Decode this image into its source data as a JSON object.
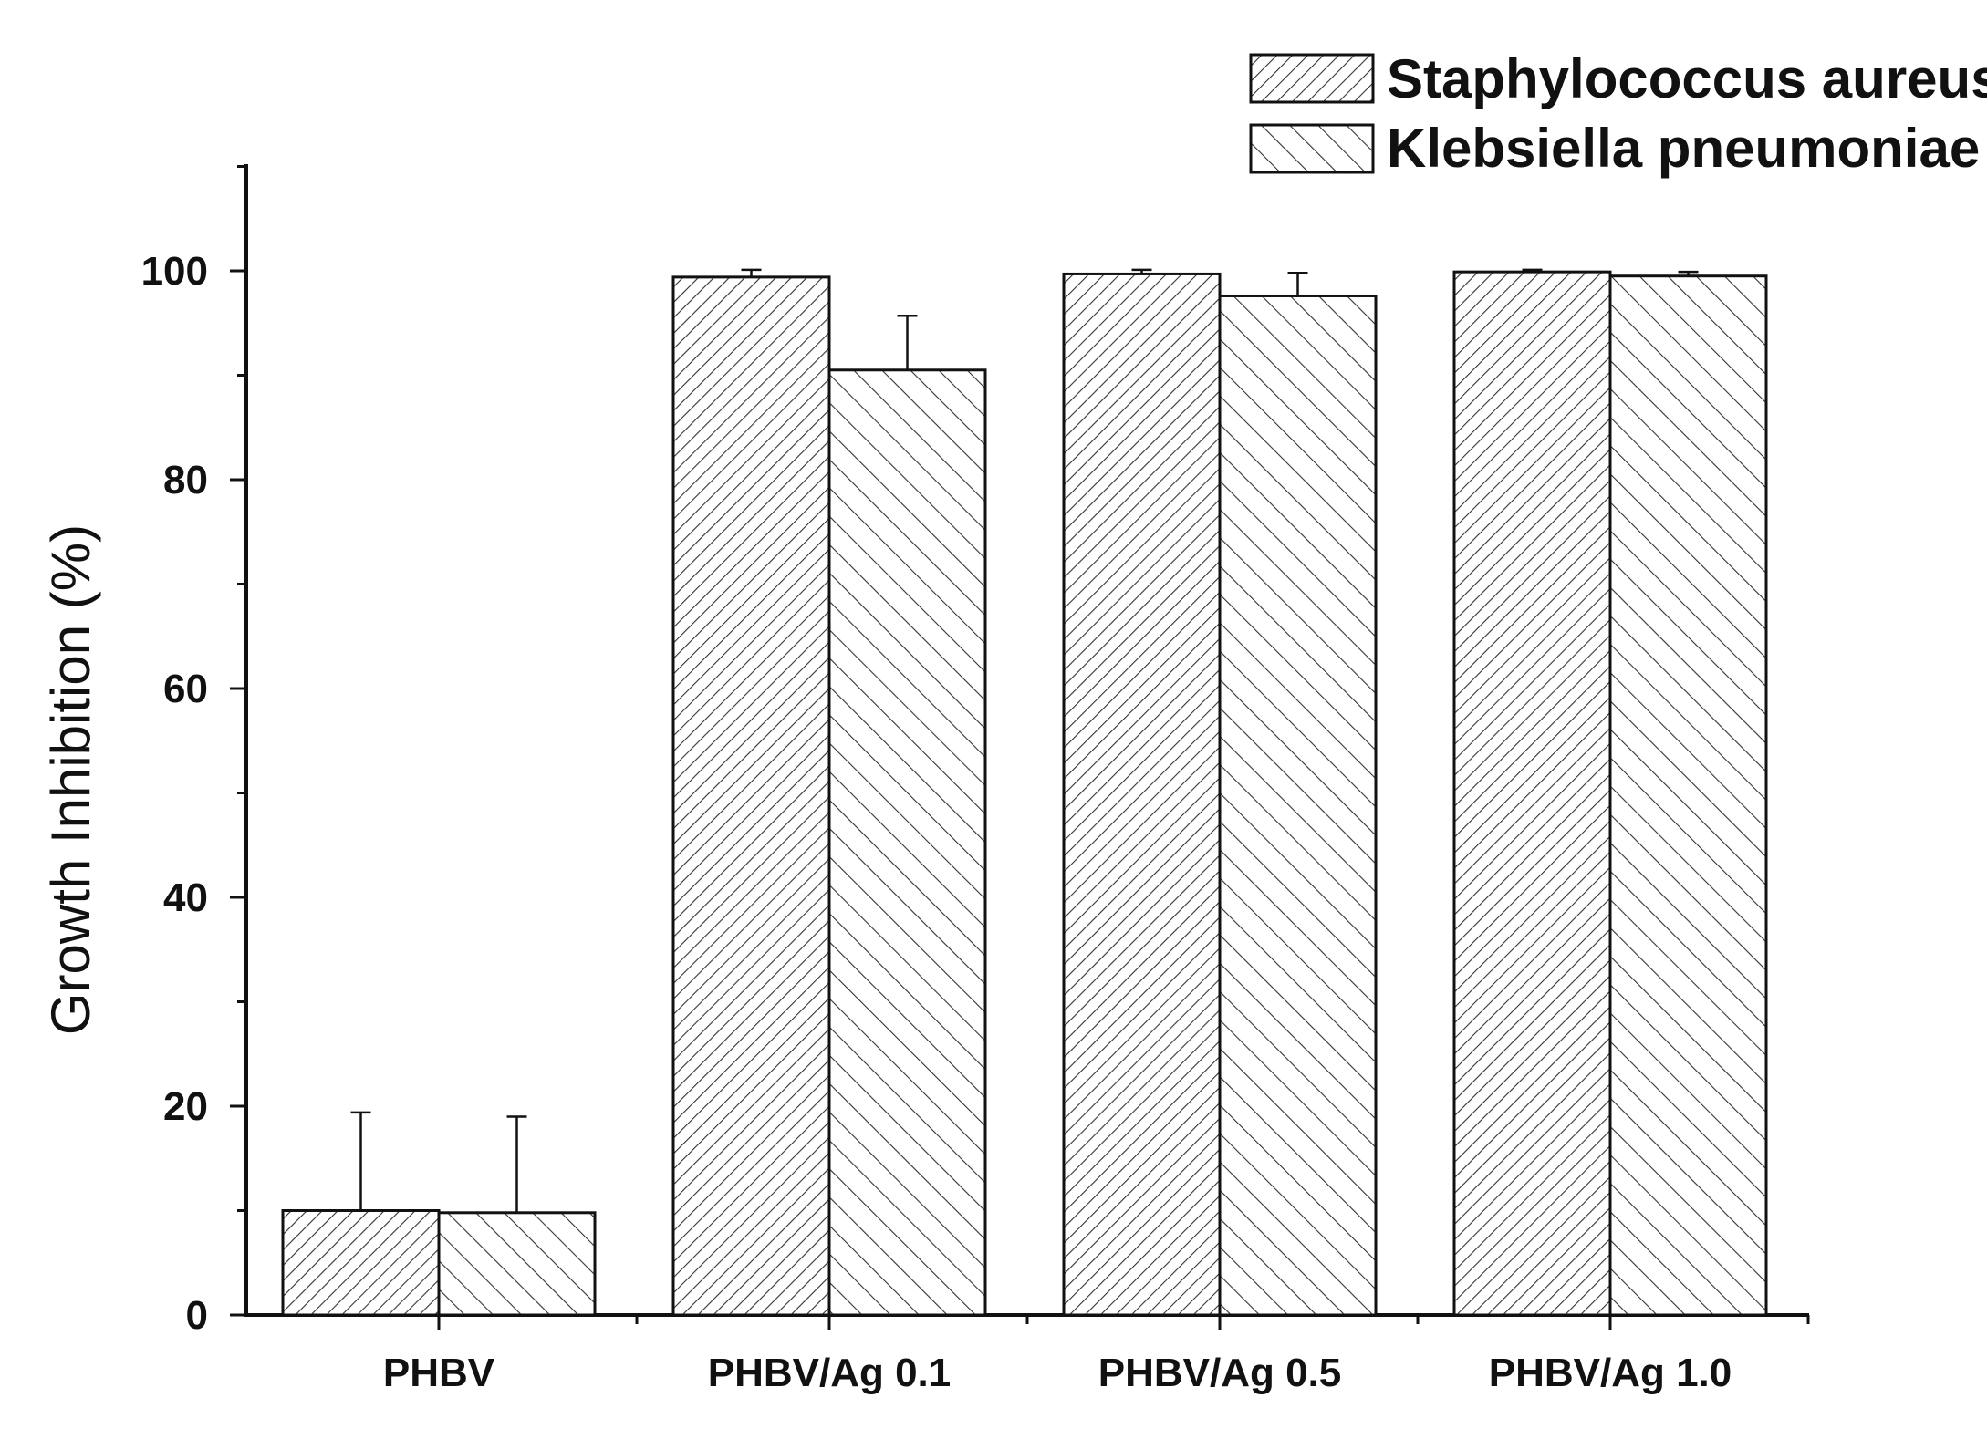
{
  "chart_data": {
    "type": "bar",
    "ylabel": "Growth Inhibition (%)",
    "xlabel": "",
    "ylim": [
      0,
      110
    ],
    "yticks": [
      0,
      20,
      40,
      60,
      80,
      100
    ],
    "categories": [
      "PHBV",
      "PHBV/Ag 0.1",
      "PHBV/Ag 0.5",
      "PHBV/Ag 1.0"
    ],
    "series": [
      {
        "name": "Staphylococcus aureus",
        "values": [
          10.0,
          99.4,
          99.7,
          99.9
        ],
        "errors": [
          9.4,
          0.7,
          0.4,
          0.2
        ],
        "pattern": "dense-forward-hatch"
      },
      {
        "name": "Klebsiella pneumoniae",
        "values": [
          9.8,
          90.5,
          97.6,
          99.5
        ],
        "errors": [
          9.2,
          5.2,
          2.2,
          0.4
        ],
        "pattern": "sparse-backward-hatch"
      }
    ],
    "legend_position": "top-right",
    "grid": false,
    "error_bars": "upper only",
    "colors": {
      "bar_fill": "#ffffff",
      "hatch": "#333333",
      "outline": "#111111",
      "axis": "#111111"
    }
  }
}
